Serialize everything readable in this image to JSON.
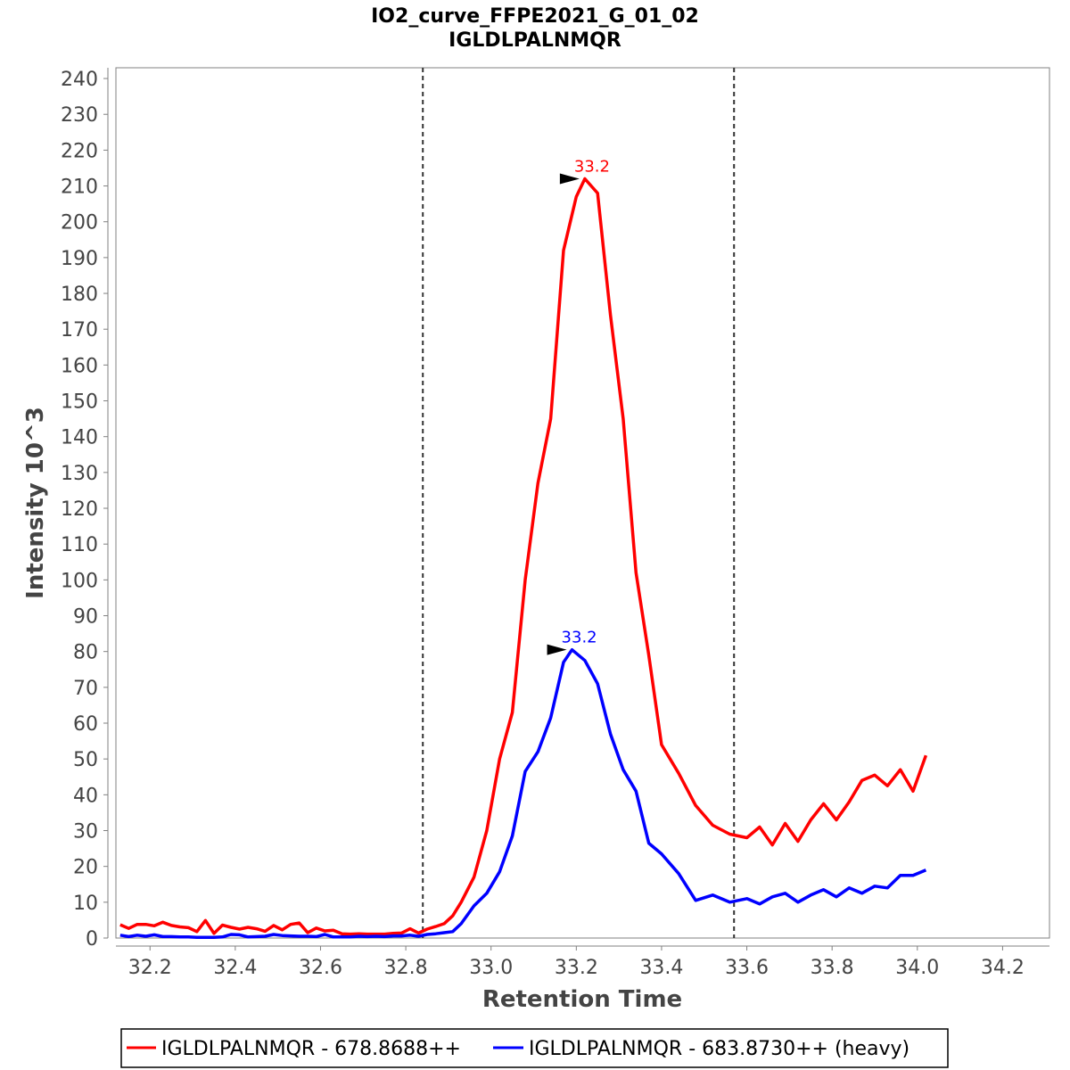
{
  "chart_data": {
    "type": "line",
    "title": "IO2_curve_FFPE2021_G_01_02",
    "subtitle": "IGLDLPALNMQR",
    "xlabel": "Retention Time",
    "ylabel": "Intensity 10^3",
    "xlim": [
      32.12,
      34.31
    ],
    "ylim": [
      0,
      243
    ],
    "x_ticks": [
      32.2,
      32.4,
      32.6,
      32.8,
      33.0,
      33.2,
      33.4,
      33.6,
      33.8,
      34.0,
      34.2
    ],
    "x_tick_labels": [
      "32.2",
      "32.4",
      "32.6",
      "32.8",
      "33.0",
      "33.2",
      "33.4",
      "33.6",
      "33.8",
      "34.0",
      "34.2"
    ],
    "y_ticks": [
      0,
      10,
      20,
      30,
      40,
      50,
      60,
      70,
      80,
      90,
      100,
      110,
      120,
      130,
      140,
      150,
      160,
      170,
      180,
      190,
      200,
      210,
      220,
      230,
      240
    ],
    "y_tick_labels": [
      "0",
      "10",
      "20",
      "30",
      "40",
      "50",
      "60",
      "70",
      "80",
      "90",
      "100",
      "110",
      "120",
      "130",
      "140",
      "150",
      "160",
      "170",
      "180",
      "190",
      "200",
      "210",
      "220",
      "230",
      "240"
    ],
    "grid": false,
    "legend_position": "bottom",
    "integration_boundaries": [
      32.84,
      33.57
    ],
    "series": [
      {
        "name": "IGLDLPALNMQR - 678.8688++",
        "color": "#ff0000",
        "x": [
          32.13,
          32.15,
          32.17,
          32.19,
          32.21,
          32.23,
          32.25,
          32.27,
          32.29,
          32.31,
          32.33,
          32.35,
          32.37,
          32.39,
          32.41,
          32.43,
          32.45,
          32.47,
          32.49,
          32.51,
          32.53,
          32.55,
          32.57,
          32.59,
          32.61,
          32.63,
          32.65,
          32.67,
          32.69,
          32.71,
          32.73,
          32.75,
          32.77,
          32.79,
          32.81,
          32.83,
          32.85,
          32.87,
          32.89,
          32.91,
          32.93,
          32.96,
          32.99,
          33.02,
          33.05,
          33.08,
          33.11,
          33.14,
          33.17,
          33.2,
          33.22,
          33.25,
          33.28,
          33.31,
          33.34,
          33.37,
          33.4,
          33.44,
          33.48,
          33.52,
          33.56,
          33.6,
          33.63,
          33.66,
          33.69,
          33.72,
          33.75,
          33.78,
          33.81,
          33.84,
          33.87,
          33.9,
          33.93,
          33.96,
          33.99,
          34.02
        ],
        "values": [
          3.7,
          2.7,
          3.8,
          3.8,
          3.4,
          4.4,
          3.5,
          3.1,
          2.9,
          1.8,
          4.9,
          1.3,
          3.6,
          3.0,
          2.5,
          3.0,
          2.6,
          1.9,
          3.5,
          2.3,
          3.8,
          4.2,
          1.5,
          2.8,
          2.0,
          2.2,
          1.2,
          1.1,
          1.2,
          1.1,
          1.1,
          1.1,
          1.3,
          1.4,
          2.6,
          1.4,
          2.5,
          3.2,
          4.0,
          6.2,
          10.0,
          17.0,
          30.0,
          50.0,
          63.0,
          100.0,
          127.0,
          145.0,
          192.0,
          207.0,
          212.0,
          208.0,
          174.0,
          145.0,
          102.0,
          79.0,
          54.0,
          46.0,
          37.0,
          31.5,
          29.0,
          28.0,
          31.0,
          26.0,
          32.0,
          27.0,
          33.0,
          37.5,
          33.0,
          38.0,
          44.0,
          45.5,
          42.5,
          47.0,
          41.0,
          51.0
        ]
      },
      {
        "name": "IGLDLPALNMQR - 683.8730++ (heavy)",
        "color": "#0000ff",
        "x": [
          32.13,
          32.15,
          32.17,
          32.19,
          32.21,
          32.23,
          32.25,
          32.27,
          32.29,
          32.31,
          32.33,
          32.35,
          32.37,
          32.39,
          32.41,
          32.43,
          32.45,
          32.47,
          32.49,
          32.51,
          32.53,
          32.55,
          32.57,
          32.59,
          32.61,
          32.63,
          32.65,
          32.67,
          32.69,
          32.71,
          32.73,
          32.75,
          32.77,
          32.79,
          32.81,
          32.83,
          32.85,
          32.87,
          32.89,
          32.91,
          32.93,
          32.96,
          32.99,
          33.02,
          33.05,
          33.08,
          33.11,
          33.14,
          33.17,
          33.19,
          33.22,
          33.25,
          33.28,
          33.31,
          33.34,
          33.37,
          33.4,
          33.44,
          33.48,
          33.52,
          33.56,
          33.6,
          33.63,
          33.66,
          33.69,
          33.72,
          33.75,
          33.78,
          33.81,
          33.84,
          33.87,
          33.9,
          33.93,
          33.96,
          33.99,
          34.02
        ],
        "values": [
          0.8,
          0.4,
          0.8,
          0.5,
          0.9,
          0.4,
          0.4,
          0.3,
          0.3,
          0.2,
          0.2,
          0.2,
          0.3,
          1.0,
          0.9,
          0.3,
          0.4,
          0.5,
          1.0,
          0.7,
          0.6,
          0.5,
          0.5,
          0.4,
          1.0,
          0.3,
          0.3,
          0.3,
          0.5,
          0.4,
          0.5,
          0.4,
          0.6,
          0.6,
          0.8,
          0.5,
          1.0,
          1.2,
          1.5,
          1.8,
          4.0,
          9.0,
          12.5,
          18.5,
          28.5,
          46.5,
          52.0,
          61.5,
          77.0,
          80.5,
          77.5,
          71.0,
          57.0,
          47.0,
          41.0,
          26.5,
          23.5,
          18.0,
          10.5,
          12.0,
          10.0,
          11.0,
          9.5,
          11.5,
          12.5,
          10.0,
          12.0,
          13.5,
          11.5,
          14.0,
          12.5,
          14.5,
          14.0,
          17.5,
          17.5,
          19.0
        ]
      }
    ],
    "annotations": [
      {
        "text": "33.2",
        "x": 33.22,
        "y": 212.0,
        "color": "#ff0000"
      },
      {
        "text": "33.2",
        "x": 33.19,
        "y": 80.5,
        "color": "#0000ff"
      }
    ]
  }
}
